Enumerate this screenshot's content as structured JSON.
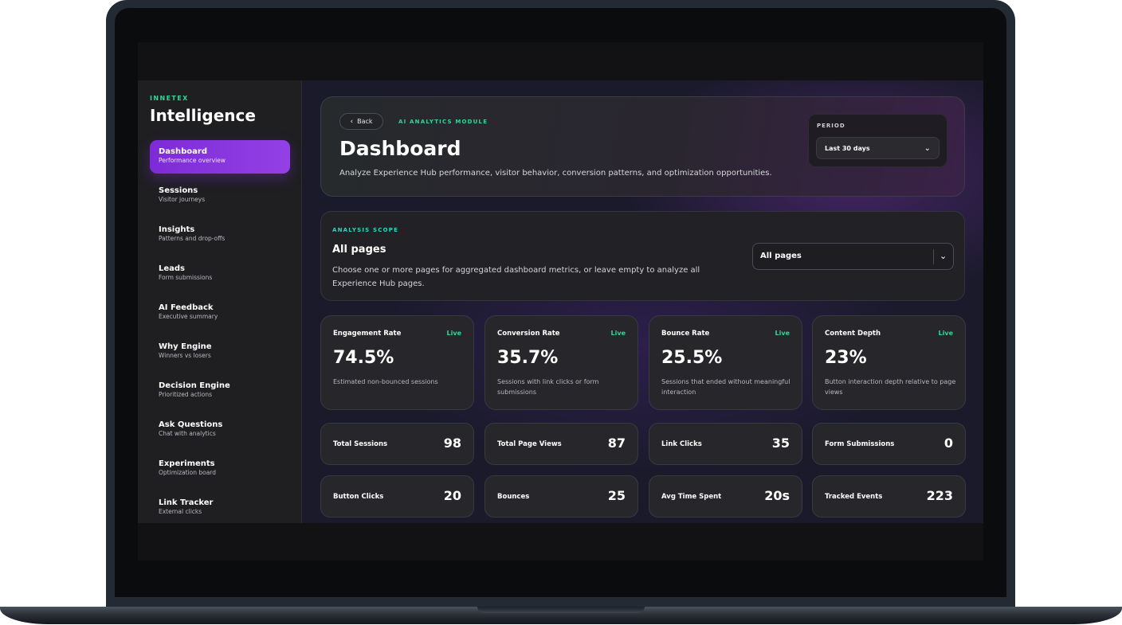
{
  "brand": {
    "kicker": "INNETEX",
    "title": "Intelligence"
  },
  "sidebar": {
    "items": [
      {
        "label": "Dashboard",
        "sub": "Performance overview",
        "active": true
      },
      {
        "label": "Sessions",
        "sub": "Visitor journeys"
      },
      {
        "label": "Insights",
        "sub": "Patterns and drop-offs"
      },
      {
        "label": "Leads",
        "sub": "Form submissions"
      },
      {
        "label": "AI Feedback",
        "sub": "Executive summary"
      },
      {
        "label": "Why Engine",
        "sub": "Winners vs losers"
      },
      {
        "label": "Decision Engine",
        "sub": "Prioritized actions"
      },
      {
        "label": "Ask Questions",
        "sub": "Chat with analytics"
      },
      {
        "label": "Experiments",
        "sub": "Optimization board"
      },
      {
        "label": "Link Tracker",
        "sub": "External clicks"
      }
    ]
  },
  "header": {
    "back_label": "Back",
    "kicker": "AI ANALYTICS MODULE",
    "title": "Dashboard",
    "description": "Analyze Experience Hub performance, visitor behavior, conversion patterns, and optimization opportunities.",
    "period_label": "PERIOD",
    "period_value": "Last 30 days"
  },
  "scope": {
    "kicker": "ANALYSIS SCOPE",
    "title": "All pages",
    "description": "Choose one or more pages for aggregated dashboard metrics, or leave empty to analyze all Experience Hub pages.",
    "select_value": "All pages"
  },
  "metrics": [
    {
      "label": "Engagement Rate",
      "badge": "Live",
      "value": "74.5%",
      "desc": "Estimated non-bounced sessions"
    },
    {
      "label": "Conversion Rate",
      "badge": "Live",
      "value": "35.7%",
      "desc": "Sessions with link clicks or form submissions"
    },
    {
      "label": "Bounce Rate",
      "badge": "Live",
      "value": "25.5%",
      "desc": "Sessions that ended without meaningful interaction"
    },
    {
      "label": "Content Depth",
      "badge": "Live",
      "value": "23%",
      "desc": "Button interaction depth relative to page views"
    }
  ],
  "stats": [
    {
      "label": "Total Sessions",
      "value": "98"
    },
    {
      "label": "Total Page Views",
      "value": "87"
    },
    {
      "label": "Link Clicks",
      "value": "35"
    },
    {
      "label": "Form Submissions",
      "value": "0"
    },
    {
      "label": "Button Clicks",
      "value": "20"
    },
    {
      "label": "Bounces",
      "value": "25"
    },
    {
      "label": "Avg Time Spent",
      "value": "20s"
    },
    {
      "label": "Tracked Events",
      "value": "223"
    }
  ],
  "colors": {
    "accent": "#8b36e0",
    "live": "#34d399",
    "kicker": "#2dd4bf"
  },
  "icons": {
    "back": "chevron-left-icon",
    "dropdown": "chevron-down-icon"
  }
}
